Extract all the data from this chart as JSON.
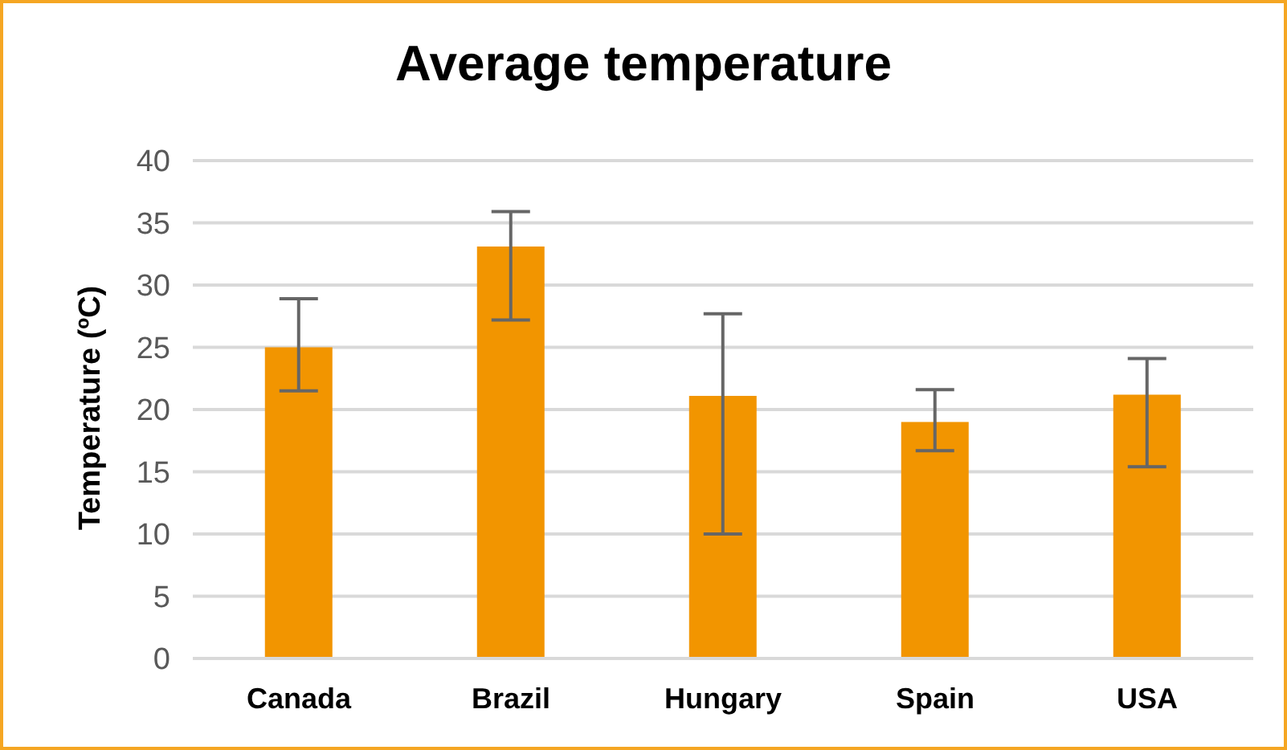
{
  "chart_data": {
    "type": "bar",
    "title": "Average temperature",
    "ylabel": "Temperature (ºC)",
    "categories": [
      "Canada",
      "Brazil",
      "Hungary",
      "Spain",
      "USA"
    ],
    "values": [
      25,
      33.1,
      21.1,
      19,
      21.2
    ],
    "errors": [
      [
        21.5,
        28.9
      ],
      [
        27.2,
        35.9
      ],
      [
        10,
        27.7
      ],
      [
        16.7,
        21.6
      ],
      [
        15.4,
        24.1
      ]
    ],
    "color": "#f29500",
    "ylim": [
      0,
      40
    ],
    "yticks": [
      0,
      5,
      10,
      15,
      20,
      25,
      30,
      35,
      40
    ],
    "grid": "y",
    "legend": false
  }
}
